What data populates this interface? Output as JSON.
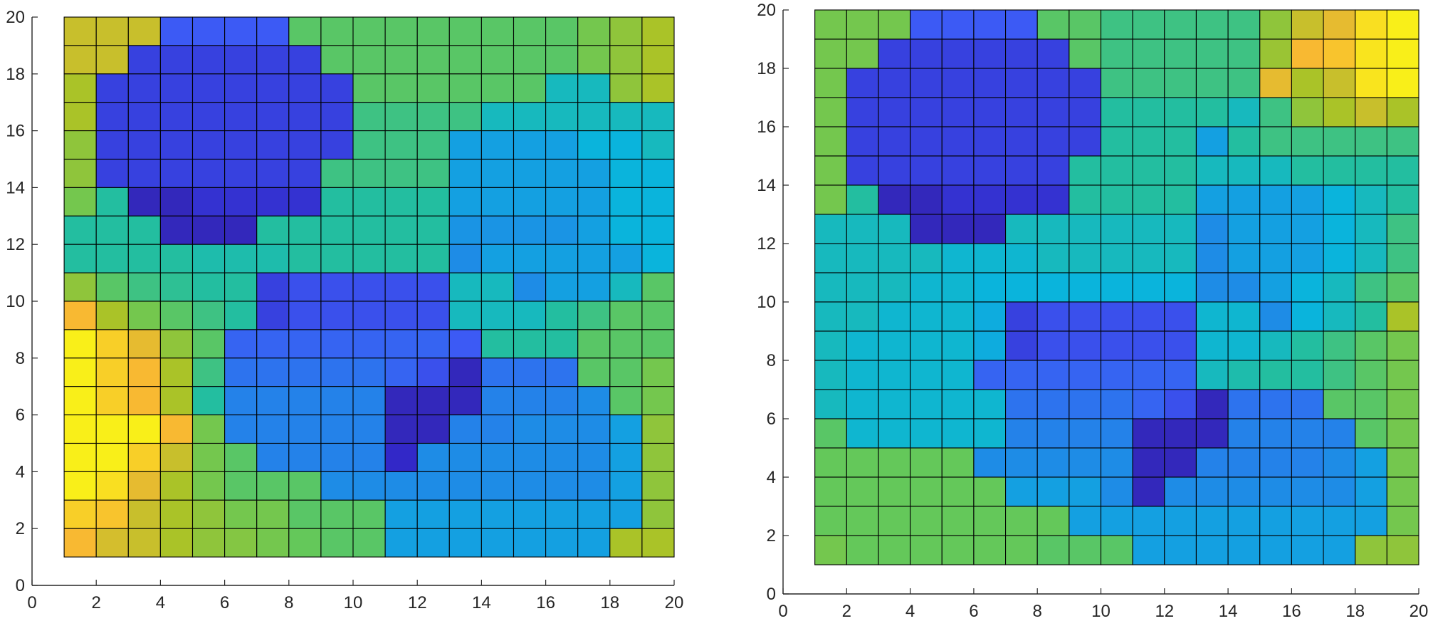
{
  "chart_data": [
    {
      "type": "heatmap",
      "title": "",
      "xlabel": "",
      "ylabel": "",
      "xlim": [
        0,
        20
      ],
      "ylim": [
        0,
        20
      ],
      "xticks": [
        "0",
        "2",
        "4",
        "6",
        "8",
        "10",
        "12",
        "14",
        "16",
        "18",
        "20"
      ],
      "yticks": [
        "0",
        "2",
        "4",
        "6",
        "8",
        "10",
        "12",
        "14",
        "16",
        "18",
        "20"
      ],
      "colormap": "parula",
      "color_range": [
        0,
        1
      ],
      "cell_extent": {
        "x": [
          1,
          20
        ],
        "y": [
          1,
          20
        ]
      },
      "grid_rows_top_to_bottom": [
        [
          0.8,
          0.8,
          0.8,
          0.2,
          0.2,
          0.2,
          0.2,
          0.6,
          0.6,
          0.6,
          0.6,
          0.6,
          0.6,
          0.6,
          0.6,
          0.6,
          0.65,
          0.7,
          0.75
        ],
        [
          0.8,
          0.8,
          0.15,
          0.15,
          0.15,
          0.15,
          0.15,
          0.15,
          0.6,
          0.6,
          0.6,
          0.6,
          0.6,
          0.6,
          0.6,
          0.6,
          0.65,
          0.7,
          0.75
        ],
        [
          0.75,
          0.15,
          0.15,
          0.15,
          0.15,
          0.15,
          0.15,
          0.15,
          0.15,
          0.6,
          0.6,
          0.6,
          0.6,
          0.6,
          0.6,
          0.45,
          0.45,
          0.7,
          0.75
        ],
        [
          0.75,
          0.15,
          0.15,
          0.15,
          0.15,
          0.15,
          0.15,
          0.15,
          0.15,
          0.55,
          0.55,
          0.55,
          0.55,
          0.45,
          0.45,
          0.45,
          0.45,
          0.45,
          0.45
        ],
        [
          0.7,
          0.15,
          0.15,
          0.15,
          0.15,
          0.15,
          0.15,
          0.15,
          0.15,
          0.55,
          0.55,
          0.55,
          0.35,
          0.35,
          0.35,
          0.35,
          0.4,
          0.4,
          0.45
        ],
        [
          0.7,
          0.15,
          0.15,
          0.15,
          0.15,
          0.15,
          0.15,
          0.15,
          0.55,
          0.55,
          0.55,
          0.55,
          0.35,
          0.35,
          0.35,
          0.35,
          0.35,
          0.4,
          0.4
        ],
        [
          0.65,
          0.5,
          0.08,
          0.08,
          0.12,
          0.12,
          0.12,
          0.12,
          0.5,
          0.5,
          0.5,
          0.5,
          0.35,
          0.35,
          0.35,
          0.35,
          0.35,
          0.4,
          0.4
        ],
        [
          0.5,
          0.5,
          0.5,
          0.08,
          0.08,
          0.08,
          0.5,
          0.5,
          0.5,
          0.5,
          0.5,
          0.5,
          0.32,
          0.32,
          0.32,
          0.32,
          0.35,
          0.4,
          0.4
        ],
        [
          0.5,
          0.5,
          0.5,
          0.5,
          0.48,
          0.48,
          0.48,
          0.5,
          0.5,
          0.5,
          0.5,
          0.5,
          0.3,
          0.35,
          0.35,
          0.35,
          0.35,
          0.35,
          0.4
        ],
        [
          0.7,
          0.6,
          0.55,
          0.52,
          0.5,
          0.5,
          0.15,
          0.18,
          0.18,
          0.18,
          0.18,
          0.18,
          0.45,
          0.45,
          0.3,
          0.35,
          0.35,
          0.45,
          0.6
        ],
        [
          0.88,
          0.75,
          0.65,
          0.6,
          0.55,
          0.5,
          0.15,
          0.18,
          0.18,
          0.18,
          0.18,
          0.18,
          0.45,
          0.45,
          0.45,
          0.5,
          0.55,
          0.6,
          0.6
        ],
        [
          0.98,
          0.92,
          0.85,
          0.7,
          0.6,
          0.22,
          0.22,
          0.22,
          0.22,
          0.22,
          0.22,
          0.22,
          0.2,
          0.5,
          0.5,
          0.5,
          0.6,
          0.6,
          0.6
        ],
        [
          0.98,
          0.92,
          0.88,
          0.75,
          0.55,
          0.25,
          0.25,
          0.25,
          0.25,
          0.25,
          0.22,
          0.18,
          0.08,
          0.25,
          0.25,
          0.25,
          0.6,
          0.6,
          0.65
        ],
        [
          0.98,
          0.92,
          0.88,
          0.75,
          0.5,
          0.28,
          0.28,
          0.28,
          0.28,
          0.28,
          0.08,
          0.08,
          0.08,
          0.28,
          0.28,
          0.28,
          0.3,
          0.6,
          0.65
        ],
        [
          0.98,
          0.98,
          0.98,
          0.88,
          0.65,
          0.28,
          0.28,
          0.28,
          0.28,
          0.28,
          0.08,
          0.08,
          0.28,
          0.28,
          0.3,
          0.3,
          0.3,
          0.35,
          0.7
        ],
        [
          0.98,
          0.98,
          0.92,
          0.8,
          0.65,
          0.6,
          0.28,
          0.28,
          0.28,
          0.28,
          0.1,
          0.3,
          0.3,
          0.3,
          0.3,
          0.3,
          0.3,
          0.35,
          0.7
        ],
        [
          0.98,
          0.95,
          0.85,
          0.75,
          0.65,
          0.6,
          0.6,
          0.6,
          0.3,
          0.3,
          0.3,
          0.3,
          0.3,
          0.3,
          0.3,
          0.3,
          0.3,
          0.35,
          0.7
        ],
        [
          0.92,
          0.9,
          0.8,
          0.75,
          0.7,
          0.65,
          0.65,
          0.6,
          0.6,
          0.6,
          0.35,
          0.35,
          0.35,
          0.35,
          0.35,
          0.35,
          0.35,
          0.35,
          0.7
        ],
        [
          0.88,
          0.82,
          0.8,
          0.75,
          0.7,
          0.68,
          0.65,
          0.62,
          0.6,
          0.6,
          0.35,
          0.35,
          0.35,
          0.35,
          0.35,
          0.35,
          0.35,
          0.75,
          0.75
        ]
      ]
    },
    {
      "type": "heatmap",
      "title": "",
      "xlabel": "",
      "ylabel": "",
      "xlim": [
        0,
        20
      ],
      "ylim": [
        0,
        20
      ],
      "xticks": [
        "0",
        "2",
        "4",
        "6",
        "8",
        "10",
        "12",
        "14",
        "16",
        "18",
        "20"
      ],
      "yticks": [
        "0",
        "2",
        "4",
        "6",
        "8",
        "10",
        "12",
        "14",
        "16",
        "18",
        "20"
      ],
      "colormap": "parula",
      "color_range": [
        0,
        1
      ],
      "cell_extent": {
        "x": [
          1,
          20
        ],
        "y": [
          1,
          20
        ]
      },
      "grid_rows_top_to_bottom": [
        [
          0.65,
          0.65,
          0.65,
          0.2,
          0.2,
          0.2,
          0.2,
          0.6,
          0.6,
          0.55,
          0.55,
          0.55,
          0.55,
          0.55,
          0.7,
          0.8,
          0.85,
          0.95,
          0.98
        ],
        [
          0.65,
          0.65,
          0.15,
          0.15,
          0.15,
          0.15,
          0.15,
          0.15,
          0.6,
          0.55,
          0.55,
          0.55,
          0.55,
          0.55,
          0.72,
          0.88,
          0.9,
          0.96,
          0.98
        ],
        [
          0.65,
          0.15,
          0.15,
          0.15,
          0.15,
          0.15,
          0.15,
          0.15,
          0.15,
          0.55,
          0.55,
          0.55,
          0.55,
          0.55,
          0.85,
          0.75,
          0.8,
          0.96,
          0.98
        ],
        [
          0.65,
          0.15,
          0.15,
          0.15,
          0.15,
          0.15,
          0.15,
          0.15,
          0.15,
          0.5,
          0.5,
          0.5,
          0.5,
          0.45,
          0.55,
          0.7,
          0.75,
          0.8,
          0.75
        ],
        [
          0.65,
          0.15,
          0.15,
          0.15,
          0.15,
          0.15,
          0.15,
          0.15,
          0.15,
          0.5,
          0.5,
          0.5,
          0.35,
          0.5,
          0.55,
          0.55,
          0.55,
          0.55,
          0.55
        ],
        [
          0.65,
          0.15,
          0.15,
          0.15,
          0.15,
          0.15,
          0.15,
          0.15,
          0.5,
          0.5,
          0.5,
          0.5,
          0.45,
          0.45,
          0.45,
          0.5,
          0.5,
          0.5,
          0.5
        ],
        [
          0.65,
          0.5,
          0.08,
          0.08,
          0.12,
          0.12,
          0.12,
          0.12,
          0.5,
          0.5,
          0.5,
          0.5,
          0.35,
          0.35,
          0.35,
          0.35,
          0.4,
          0.45,
          0.5
        ],
        [
          0.45,
          0.45,
          0.45,
          0.08,
          0.08,
          0.08,
          0.45,
          0.45,
          0.45,
          0.45,
          0.45,
          0.45,
          0.3,
          0.35,
          0.35,
          0.35,
          0.4,
          0.45,
          0.55
        ],
        [
          0.45,
          0.45,
          0.45,
          0.45,
          0.42,
          0.42,
          0.42,
          0.45,
          0.45,
          0.45,
          0.45,
          0.45,
          0.3,
          0.35,
          0.35,
          0.35,
          0.4,
          0.45,
          0.55
        ],
        [
          0.45,
          0.45,
          0.45,
          0.42,
          0.42,
          0.4,
          0.4,
          0.4,
          0.4,
          0.4,
          0.4,
          0.4,
          0.3,
          0.3,
          0.35,
          0.4,
          0.45,
          0.55,
          0.6
        ],
        [
          0.45,
          0.45,
          0.42,
          0.42,
          0.42,
          0.38,
          0.15,
          0.18,
          0.18,
          0.18,
          0.18,
          0.18,
          0.42,
          0.42,
          0.3,
          0.4,
          0.45,
          0.5,
          0.75
        ],
        [
          0.45,
          0.42,
          0.42,
          0.42,
          0.42,
          0.38,
          0.15,
          0.18,
          0.18,
          0.18,
          0.18,
          0.18,
          0.42,
          0.42,
          0.45,
          0.5,
          0.55,
          0.6,
          0.65
        ],
        [
          0.45,
          0.42,
          0.42,
          0.42,
          0.42,
          0.22,
          0.22,
          0.22,
          0.22,
          0.22,
          0.22,
          0.22,
          0.45,
          0.48,
          0.5,
          0.5,
          0.55,
          0.6,
          0.65
        ],
        [
          0.45,
          0.42,
          0.42,
          0.42,
          0.42,
          0.42,
          0.25,
          0.25,
          0.25,
          0.25,
          0.22,
          0.18,
          0.08,
          0.25,
          0.25,
          0.25,
          0.6,
          0.6,
          0.65
        ],
        [
          0.6,
          0.42,
          0.42,
          0.42,
          0.42,
          0.42,
          0.28,
          0.28,
          0.28,
          0.28,
          0.08,
          0.08,
          0.08,
          0.28,
          0.28,
          0.28,
          0.28,
          0.6,
          0.65
        ],
        [
          0.62,
          0.62,
          0.62,
          0.62,
          0.62,
          0.3,
          0.3,
          0.3,
          0.3,
          0.3,
          0.08,
          0.08,
          0.28,
          0.28,
          0.28,
          0.28,
          0.3,
          0.35,
          0.65
        ],
        [
          0.62,
          0.62,
          0.62,
          0.62,
          0.62,
          0.62,
          0.35,
          0.35,
          0.35,
          0.3,
          0.08,
          0.3,
          0.3,
          0.3,
          0.3,
          0.3,
          0.3,
          0.35,
          0.65
        ],
        [
          0.62,
          0.62,
          0.62,
          0.62,
          0.62,
          0.62,
          0.62,
          0.62,
          0.35,
          0.35,
          0.35,
          0.35,
          0.35,
          0.35,
          0.35,
          0.35,
          0.35,
          0.35,
          0.65
        ],
        [
          0.65,
          0.62,
          0.62,
          0.62,
          0.62,
          0.62,
          0.62,
          0.6,
          0.6,
          0.6,
          0.35,
          0.35,
          0.35,
          0.35,
          0.35,
          0.35,
          0.35,
          0.7,
          0.7
        ]
      ]
    }
  ]
}
